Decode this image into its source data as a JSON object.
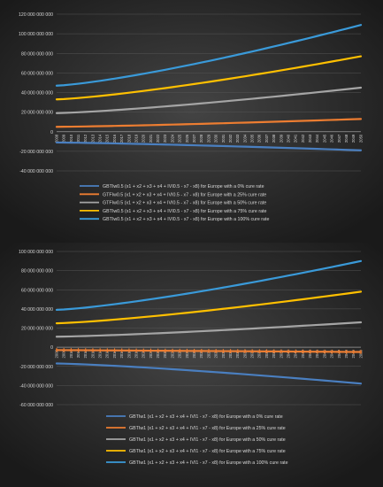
{
  "colors": {
    "background_dark": "#1c1c1c",
    "background_mid": "#3a3a3a",
    "grid": "#555555",
    "axis_text": "#d9d9d9",
    "legend_text": "#d9d9d9"
  },
  "chart_data": [
    {
      "type": "line",
      "title": "",
      "xlabel": "",
      "ylabel": "",
      "ylim": [
        -40000000000,
        120000000000
      ],
      "y_ticks": [
        -40000000000,
        -20000000000,
        0,
        20000000000,
        40000000000,
        60000000000,
        80000000000,
        100000000000,
        120000000000
      ],
      "y_tick_labels": [
        "-40 000 000 000",
        "-20 000 000 000",
        "0",
        "20 000 000 000",
        "40 000 000 000",
        "60 000 000 000",
        "80 000 000 000",
        "100 000 000 000",
        "120 000 000 000"
      ],
      "categories": [
        "2008",
        "2009",
        "2010",
        "2011",
        "2012",
        "2013",
        "2014",
        "2015",
        "2016",
        "2017",
        "2018",
        "2019",
        "2020",
        "2021",
        "2022",
        "2023",
        "2024",
        "2025",
        "2026",
        "2027",
        "2028",
        "2029",
        "2030",
        "2031",
        "2032",
        "2033",
        "2034",
        "2035",
        "2036",
        "2037",
        "2038",
        "2039",
        "2040",
        "2041",
        "2042",
        "2043",
        "2044",
        "2045",
        "2046",
        "2047",
        "2048",
        "2049",
        "2050"
      ],
      "grid": true,
      "legend_position": "bottom-center",
      "series": [
        {
          "name": "GBTIw0.5 (x1 + x2 + x3 + x4 + IVI0.5 - x7 - x8) for Europe with a 0% cure rate",
          "color": "#4a7fc0",
          "start": -11000000000,
          "end": -19000000000,
          "curve": 1.3
        },
        {
          "name": "GTFIw0.5 (x1 + x2 + x3 + x4 + IVI0.5 - x7 - x8) for Europe with a 25% cure rate",
          "color": "#ed7d31",
          "start": 5000000000,
          "end": 13000000000,
          "curve": 1.3
        },
        {
          "name": "GTFIw0.5 (x1 + x2 + x3 + x4 + IVI0.5 - x7 - x8) for Europe with a 50% cure rate",
          "color": "#a5a5a5",
          "start": 19000000000,
          "end": 45000000000,
          "curve": 1.3
        },
        {
          "name": "GBTIw0.5 (x1 + x2 + x3 + x4 + IVI0.5 - x7 - x8) for Europe with a 75% cure rate",
          "color": "#ffc000",
          "start": 33000000000,
          "end": 77000000000,
          "curve": 1.3
        },
        {
          "name": "GBTIw0.5 (x1 + x2 + x3 + x4 + IVI0.5 - x7 - x8) for Europe with a 100% cure rate",
          "color": "#3a9ad9",
          "start": 47000000000,
          "end": 109000000000,
          "curve": 1.3
        }
      ]
    },
    {
      "type": "line",
      "title": "",
      "xlabel": "",
      "ylabel": "",
      "ylim": [
        -60000000000,
        100000000000
      ],
      "y_ticks": [
        -60000000000,
        -40000000000,
        -20000000000,
        0,
        20000000000,
        40000000000,
        60000000000,
        80000000000,
        100000000000
      ],
      "y_tick_labels": [
        "-60 000 000 000",
        "-40 000 000 000",
        "-20 000 000 000",
        "0",
        "20 000 000 000",
        "40 000 000 000",
        "60 000 000 000",
        "80 000 000 000",
        "100 000 000 000"
      ],
      "categories": [
        "2008",
        "2009",
        "2010",
        "2011",
        "2012",
        "2013",
        "2014",
        "2015",
        "2016",
        "2017",
        "2018",
        "2019",
        "2020",
        "2021",
        "2022",
        "2023",
        "2024",
        "2025",
        "2026",
        "2027",
        "2028",
        "2029",
        "2030",
        "2031",
        "2032",
        "2033",
        "2034",
        "2035",
        "2036",
        "2037",
        "2038",
        "2039",
        "2040",
        "2041",
        "2042",
        "2043",
        "2044",
        "2045",
        "2046",
        "2047",
        "2048",
        "2049",
        "2050"
      ],
      "grid": true,
      "legend_position": "bottom-center",
      "series": [
        {
          "name": "GBTIw1 (x1 + x2 + x3 + x4 + IVI1 - x7 - x8) for Europe with a 0% cure rate",
          "color": "#4a7fc0",
          "start": -17000000000,
          "end": -38000000000,
          "curve": 1.3
        },
        {
          "name": "GBTIw1 (x1 + x2 + x3 + x4 + IVI1 - x7 - x8) for Europe with a 25% cure rate",
          "color": "#ed7d31",
          "start": -3000000000,
          "end": -5000000000,
          "curve": 1.0,
          "markers": true
        },
        {
          "name": "GBTIw1 (x1 + x2 + x3 + x4 + IVI1 - x7 - x8) for Europe with a 50% cure rate",
          "color": "#a5a5a5",
          "start": 11000000000,
          "end": 26000000000,
          "curve": 1.3
        },
        {
          "name": "GBTIw1 (x1 + x2 + x3 + x4 + IVI1 - x7 - x8) for Europe with a 75% cure rate",
          "color": "#ffc000",
          "start": 25000000000,
          "end": 58000000000,
          "curve": 1.3
        },
        {
          "name": "GBTIw1 (x1 + x2 + x3 + x4 + IVI1 - x7 - x8) for Europe with a 100% cure rate",
          "color": "#3a9ad9",
          "start": 39000000000,
          "end": 90000000000,
          "curve": 1.3
        }
      ]
    }
  ]
}
